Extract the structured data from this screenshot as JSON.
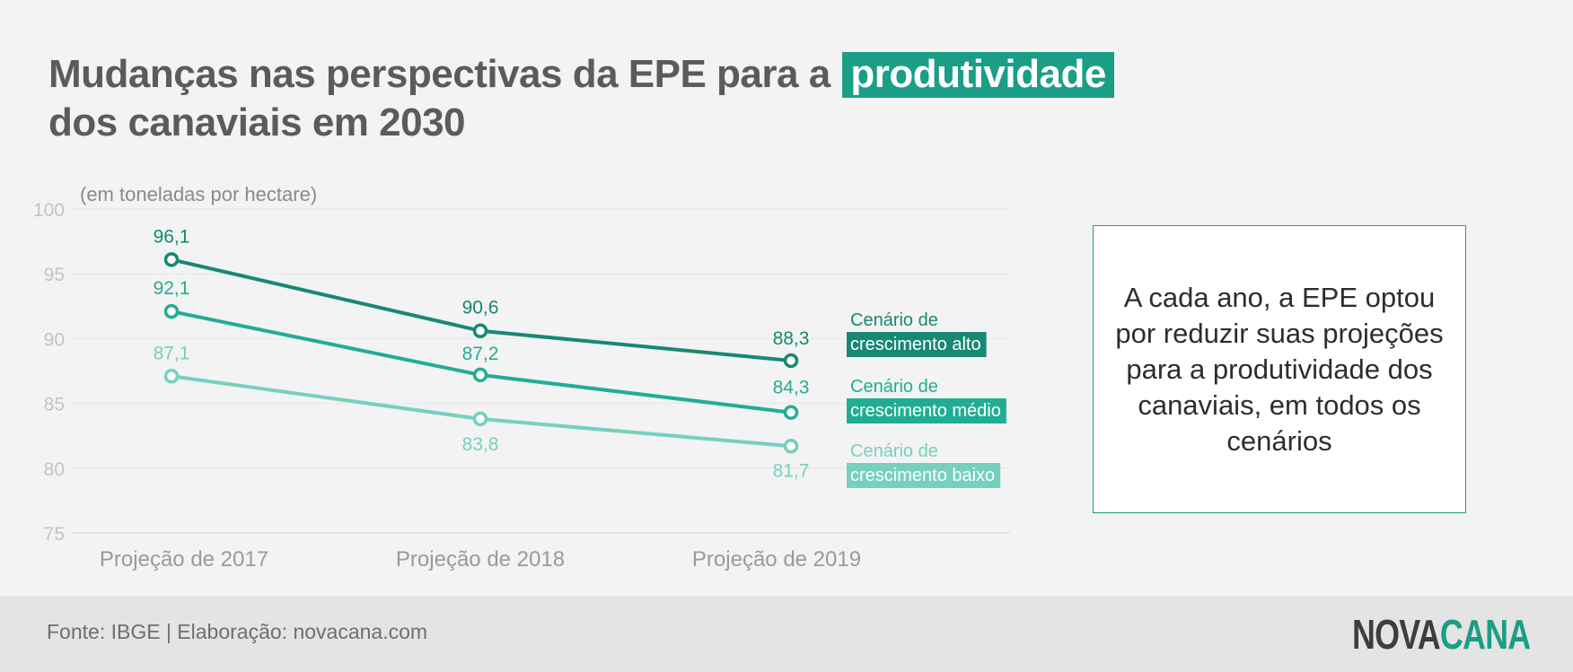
{
  "title": {
    "part1": "Mudanças nas perspectivas da EPE para a",
    "highlight": "produtividade",
    "line2": "dos canaviais em 2030"
  },
  "note": "A cada ano, a EPE optou por reduzir suas projeções para a produtividade dos canaviais, em todos os cenários",
  "footer": {
    "source": "Fonte: IBGE | Elaboração: novacana.com",
    "logo_part1": "NOVA",
    "logo_part2": "CANA"
  },
  "chart_data": {
    "type": "line",
    "unit_label": "(em toneladas por hectare)",
    "categories": [
      "Projeção de 2017",
      "Projeção de 2018",
      "Projeção de 2019"
    ],
    "y_ticks": [
      75,
      80,
      85,
      90,
      95,
      100
    ],
    "ylim": [
      75,
      100
    ],
    "grid": true,
    "series": [
      {
        "name_line1": "Cenário de",
        "name_line2": "crescimento alto",
        "values": [
          96.1,
          90.6,
          88.3
        ],
        "labels": [
          "96,1",
          "90,6",
          "88,3"
        ],
        "color": "#178873"
      },
      {
        "name_line1": "Cenário de",
        "name_line2": "crescimento médio",
        "values": [
          92.1,
          87.2,
          84.3
        ],
        "labels": [
          "92,1",
          "87,2",
          "84,3"
        ],
        "color": "#21ad94"
      },
      {
        "name_line1": "Cenário de",
        "name_line2": "crescimento baixo",
        "values": [
          87.1,
          83.8,
          81.7
        ],
        "labels": [
          "87,1",
          "83,8",
          "81,7"
        ],
        "color": "#76d0be"
      }
    ]
  }
}
